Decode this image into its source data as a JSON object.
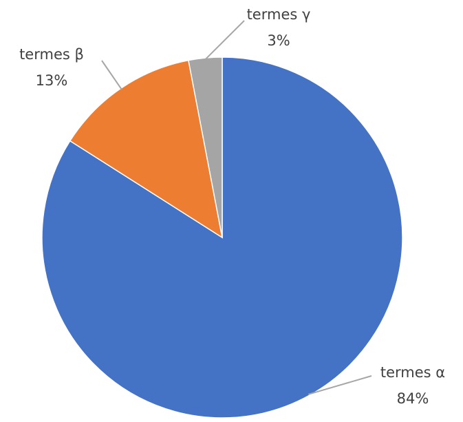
{
  "chart_data": {
    "type": "pie",
    "categories": [
      "termes α",
      "termes β",
      "termes γ"
    ],
    "values": [
      84,
      13,
      3
    ],
    "value_labels": [
      "84%",
      "13%",
      "3%"
    ],
    "colors": [
      "#4472c4",
      "#ed7d31",
      "#a5a5a5"
    ]
  }
}
